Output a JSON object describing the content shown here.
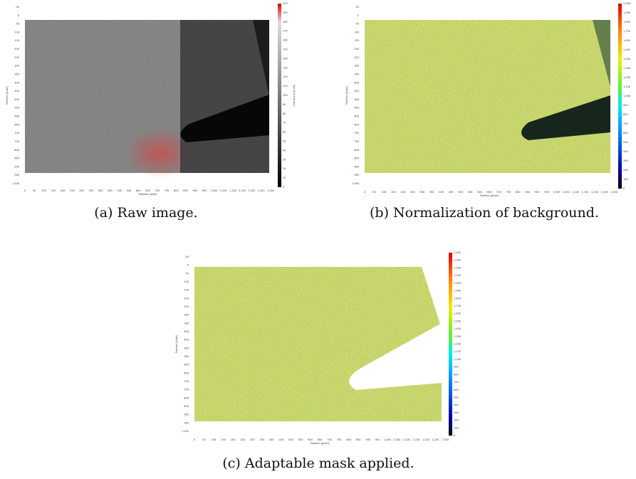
{
  "figures": [
    {
      "caption": "(a) Raw image.",
      "x_label": "Position [pixel]",
      "y_label": "Position [pixel]",
      "colorbar_label": "Intensity [counts]",
      "x_ticks": [
        "0",
        "50",
        "100",
        "150",
        "200",
        "250",
        "300",
        "350",
        "400",
        "450",
        "500",
        "550",
        "600",
        "650",
        "700",
        "750",
        "800",
        "850",
        "900",
        "950",
        "1,000",
        "1,050",
        "1,100",
        "1,150",
        "1,200",
        "1,250",
        "1,300"
      ],
      "y_ticks": [
        "-50",
        "0",
        "50",
        "100",
        "150",
        "200",
        "250",
        "300",
        "350",
        "400",
        "450",
        "500",
        "550",
        "600",
        "650",
        "700",
        "750",
        "800",
        "850",
        "900",
        "950",
        "1,000"
      ],
      "colorbar_ticks": [
        "0",
        "10",
        "20",
        "30",
        "40",
        "50",
        "60",
        "70",
        "80",
        "90",
        "100",
        "110",
        "120",
        "130",
        "140",
        "150",
        "160",
        "170",
        "180",
        "190",
        "200"
      ]
    },
    {
      "caption": "(b) Normalization of background.",
      "x_label": "Position [pixel]",
      "y_label": "Position [pixel]",
      "x_ticks": [
        "0",
        "50",
        "100",
        "150",
        "200",
        "250",
        "300",
        "350",
        "400",
        "450",
        "500",
        "550",
        "600",
        "650",
        "700",
        "750",
        "800",
        "850",
        "900",
        "950",
        "1,000",
        "1,050",
        "1,100",
        "1,150",
        "1,200",
        "1,250",
        "1,300"
      ],
      "y_ticks": [
        "-50",
        "0",
        "50",
        "100",
        "150",
        "200",
        "250",
        "300",
        "350",
        "400",
        "450",
        "500",
        "550",
        "600",
        "650",
        "700",
        "750",
        "800",
        "850",
        "900",
        "950",
        "1,000"
      ],
      "colorbar_ticks": [
        "0",
        "100",
        "200",
        "300",
        "400",
        "500",
        "600",
        "700",
        "800",
        "900",
        "1,000",
        "1,100",
        "1,200",
        "1,300",
        "1,400",
        "1,500",
        "1,600",
        "1,700",
        "1,800",
        "1,900",
        "2,000"
      ]
    },
    {
      "caption": "(c) Adaptable mask applied.",
      "x_label": "Position [pixel]",
      "y_label": "Position [pixel]",
      "x_ticks": [
        "0",
        "50",
        "100",
        "150",
        "200",
        "250",
        "300",
        "350",
        "400",
        "450",
        "500",
        "550",
        "600",
        "650",
        "700",
        "750",
        "800",
        "850",
        "900",
        "950",
        "1,000",
        "1,050",
        "1,100",
        "1,150",
        "1,200",
        "1,250",
        "1,300"
      ],
      "y_ticks": [
        "-50",
        "0",
        "50",
        "100",
        "150",
        "200",
        "250",
        "300",
        "350",
        "400",
        "450",
        "500",
        "550",
        "600",
        "650",
        "700",
        "750",
        "800",
        "850",
        "900",
        "950",
        "1,000"
      ],
      "colorbar_ticks": [
        "0",
        "100",
        "200",
        "300",
        "400",
        "500",
        "600",
        "700",
        "800",
        "900",
        "1,000",
        "1,100",
        "1,200",
        "1,300",
        "1,400",
        "1,500",
        "1,600",
        "1,700",
        "1,800",
        "1,900",
        "2,000",
        "2,100",
        "2,200",
        "2,300",
        "2,400"
      ]
    }
  ]
}
